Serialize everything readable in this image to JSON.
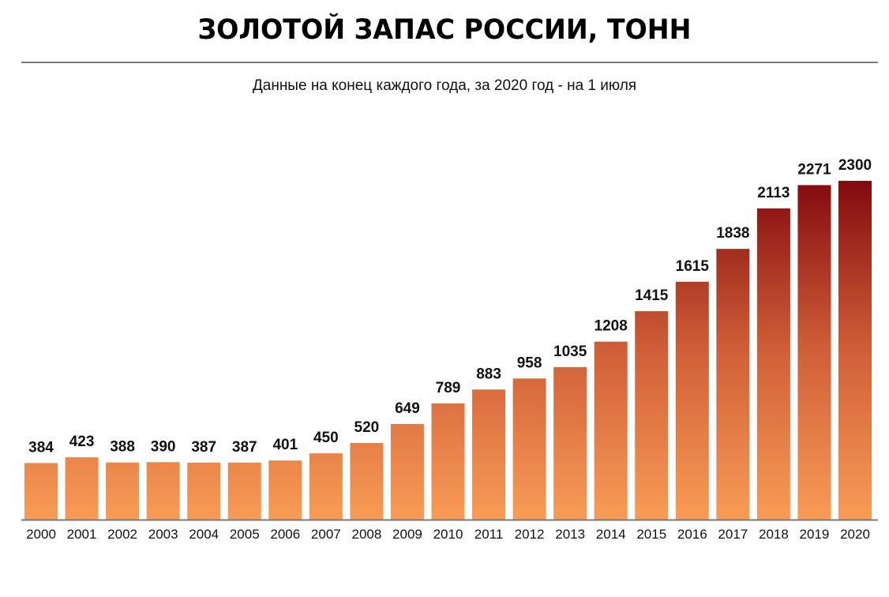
{
  "chart_data": {
    "type": "bar",
    "title": "ЗОЛОТОЙ ЗАПАС РОССИИ, ТОНН",
    "subtitle": "Данные на конец каждого года, за 2020 год - на 1 июля",
    "xlabel": "",
    "ylabel": "",
    "ylim": [
      0,
      2300
    ],
    "grid": false,
    "categories": [
      "2000",
      "2001",
      "2002",
      "2003",
      "2004",
      "2005",
      "2006",
      "2007",
      "2008",
      "2009",
      "2010",
      "2011",
      "2012",
      "2013",
      "2014",
      "2015",
      "2016",
      "2017",
      "2018",
      "2019",
      "2020"
    ],
    "values": [
      384,
      423,
      388,
      390,
      387,
      387,
      401,
      450,
      520,
      649,
      789,
      883,
      958,
      1035,
      1208,
      1415,
      1615,
      1838,
      2113,
      2271,
      2300
    ],
    "colors": {
      "bottom": "#f99b55",
      "top": "#830a0f",
      "baseline": "#7a7a7a"
    }
  }
}
